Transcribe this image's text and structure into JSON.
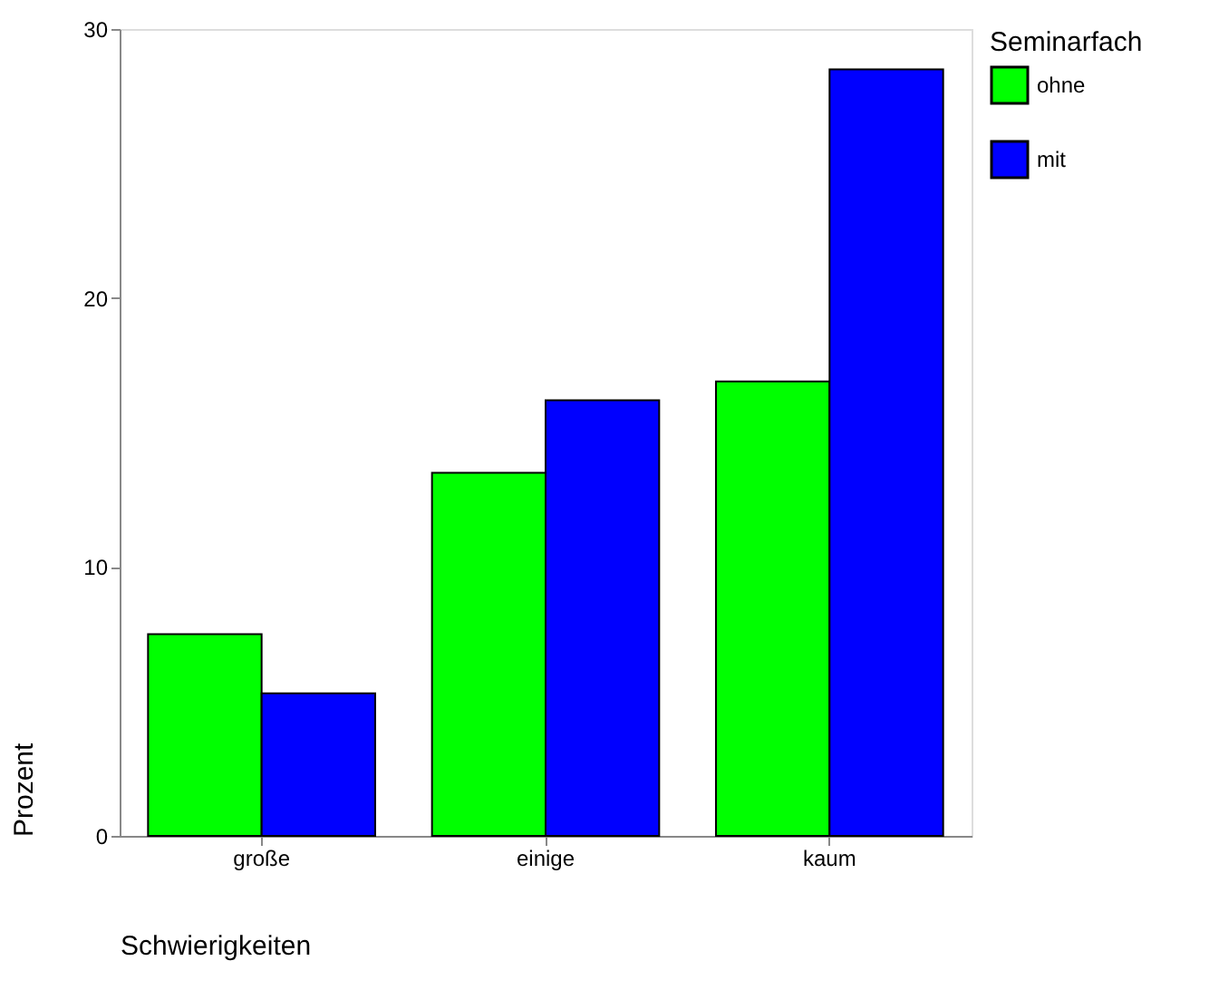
{
  "chart_data": {
    "type": "bar",
    "xlabel": "Schwierigkeiten",
    "ylabel": "Prozent",
    "legend_title": "Seminarfach",
    "categories": [
      "große",
      "einige",
      "kaum"
    ],
    "series": [
      {
        "name": "ohne",
        "color": "#00ff00",
        "values": [
          7.5,
          13.5,
          16.9
        ]
      },
      {
        "name": "mit",
        "color": "#0000ff",
        "values": [
          5.3,
          16.2,
          28.5
        ]
      }
    ],
    "ylim": [
      0,
      30
    ],
    "yticks": [
      0,
      10,
      20,
      30
    ],
    "grid": false,
    "legend": "right"
  }
}
